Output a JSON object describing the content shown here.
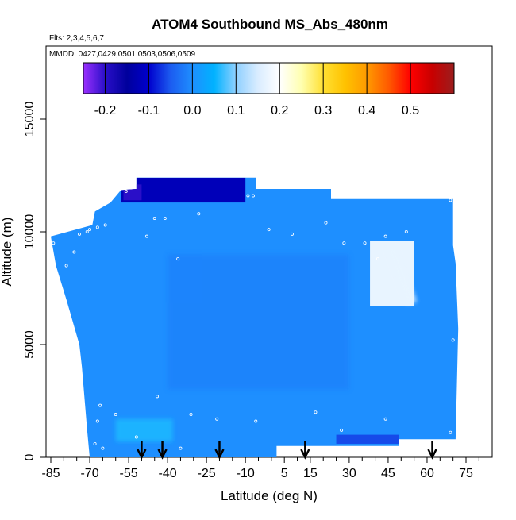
{
  "chart_data": {
    "type": "heatmap",
    "title": "ATOM4 Southbound MS_Abs_480nm",
    "subtitle_flights": "Flts: 2,3,4,5,6,7",
    "subtitle_dates": "MMDD: 0427,0429,0501,0503,0506,0509",
    "xlabel": "Latitude (deg N)",
    "ylabel": "Altitude (m)",
    "xlim": [
      -88,
      84
    ],
    "ylim": [
      0,
      17500
    ],
    "x_ticks": [
      -85,
      -70,
      -55,
      -40,
      -25,
      -10,
      5,
      15,
      30,
      45,
      60,
      75
    ],
    "x_tick_labels": [
      "-85",
      "-70",
      "-55",
      "-40",
      "-25",
      "-10",
      "5",
      "15",
      "30",
      "45",
      "60",
      "75"
    ],
    "x_minor_ticks": [
      -80,
      -75,
      -65,
      -60,
      -50,
      -45,
      -35,
      -30,
      -20,
      -15,
      -5,
      0,
      10,
      20,
      25,
      35,
      40,
      50,
      55,
      65,
      70,
      80
    ],
    "y_ticks": [
      0,
      5000,
      10000,
      15000
    ],
    "y_tick_labels": [
      "0",
      "5000",
      "10000",
      "15000"
    ],
    "colorbar": {
      "range": [
        -0.25,
        0.6
      ],
      "tick_values": [
        -0.2,
        -0.1,
        0.0,
        0.1,
        0.2,
        0.3,
        0.4,
        0.5
      ],
      "tick_labels": [
        "-0.2",
        "-0.1",
        "0.0",
        "0.1",
        "0.2",
        "0.3",
        "0.4",
        "0.5"
      ],
      "stops": [
        {
          "v": -0.25,
          "c": "#9b30ff"
        },
        {
          "v": -0.2,
          "c": "#2a0fc8"
        },
        {
          "v": -0.15,
          "c": "#00009c"
        },
        {
          "v": -0.1,
          "c": "#0000cd"
        },
        {
          "v": -0.05,
          "c": "#1c5cf0"
        },
        {
          "v": 0.0,
          "c": "#1e8fff"
        },
        {
          "v": 0.05,
          "c": "#00b2ff"
        },
        {
          "v": 0.1,
          "c": "#8fd0ff"
        },
        {
          "v": 0.15,
          "c": "#d9ecff"
        },
        {
          "v": 0.2,
          "c": "#ffffff"
        },
        {
          "v": 0.25,
          "c": "#ffffb0"
        },
        {
          "v": 0.3,
          "c": "#ffe033"
        },
        {
          "v": 0.35,
          "c": "#ffc200"
        },
        {
          "v": 0.4,
          "c": "#ff9a00"
        },
        {
          "v": 0.45,
          "c": "#ff5a00"
        },
        {
          "v": 0.5,
          "c": "#ff0000"
        },
        {
          "v": 0.55,
          "c": "#c80000"
        },
        {
          "v": 0.6,
          "c": "#9b1e1e"
        }
      ]
    },
    "curtain_outline": [
      [
        -85,
        9800
      ],
      [
        -69,
        10300
      ],
      [
        -68,
        10900
      ],
      [
        -62,
        11300
      ],
      [
        -58,
        11850
      ],
      [
        -52,
        11900
      ],
      [
        -52,
        12400
      ],
      [
        -6,
        12400
      ],
      [
        -6,
        11900
      ],
      [
        23,
        11900
      ],
      [
        23,
        11450
      ],
      [
        70,
        11450
      ],
      [
        70,
        9400
      ],
      [
        71,
        8600
      ],
      [
        72,
        5700
      ],
      [
        71,
        800
      ],
      [
        49,
        800
      ],
      [
        49,
        500
      ],
      [
        2,
        500
      ],
      [
        2,
        0
      ],
      [
        -70,
        0
      ],
      [
        -71,
        1200
      ],
      [
        -73,
        4000
      ],
      [
        -74,
        5000
      ],
      [
        -79,
        7000
      ],
      [
        -83,
        8500
      ]
    ],
    "background_value": 0.0,
    "features": [
      {
        "name": "high-altitude-low-values",
        "lat": [
          -58,
          -10
        ],
        "alt": [
          11300,
          12400
        ],
        "value": -0.12
      },
      {
        "name": "upper-minimum-core",
        "lat": [
          -57,
          -50
        ],
        "alt": [
          11400,
          12100
        ],
        "value": -0.2
      },
      {
        "name": "northern-upper-plume",
        "lat": [
          38,
          55
        ],
        "alt": [
          6700,
          9600
        ],
        "value": 0.17
      },
      {
        "name": "southern-boundary-layer-plume",
        "lat": [
          -60,
          -38
        ],
        "alt": [
          700,
          1700
        ],
        "value": 0.06
      },
      {
        "name": "low-level-negative-strip",
        "lat": [
          25,
          49
        ],
        "alt": [
          600,
          1000
        ],
        "value": -0.06
      },
      {
        "name": "mid-troposphere-slight-low",
        "lat": [
          -40,
          30
        ],
        "alt": [
          3000,
          9000
        ],
        "value": -0.02
      }
    ],
    "sample_points": [
      [
        -84,
        9500
      ],
      [
        -79,
        8500
      ],
      [
        -76,
        9100
      ],
      [
        -74,
        9900
      ],
      [
        -71,
        10000
      ],
      [
        -70,
        10100
      ],
      [
        -69,
        10800
      ],
      [
        -67,
        10200
      ],
      [
        -64,
        10300
      ],
      [
        -57,
        12000
      ],
      [
        -56,
        11800
      ],
      [
        -48,
        9800
      ],
      [
        -45,
        10600
      ],
      [
        -41,
        10600
      ],
      [
        -36,
        8800
      ],
      [
        -28,
        10800
      ],
      [
        -9,
        11600
      ],
      [
        -7,
        11600
      ],
      [
        -2,
        12200
      ],
      [
        -1,
        10100
      ],
      [
        8,
        9900
      ],
      [
        21,
        10400
      ],
      [
        28,
        9500
      ],
      [
        36,
        9500
      ],
      [
        41,
        8800
      ],
      [
        44,
        9800
      ],
      [
        52,
        10000
      ],
      [
        69,
        11400
      ],
      [
        70,
        5200
      ],
      [
        69,
        1100
      ],
      [
        -72,
        1200
      ],
      [
        -67,
        1600
      ],
      [
        -66,
        2300
      ],
      [
        -60,
        1900
      ],
      [
        -44,
        2700
      ],
      [
        -31,
        1900
      ],
      [
        -21,
        1700
      ],
      [
        -6,
        1600
      ],
      [
        17,
        2000
      ],
      [
        27,
        1200
      ],
      [
        44,
        1700
      ],
      [
        -68,
        600
      ],
      [
        -65,
        400
      ],
      [
        -35,
        400
      ],
      [
        8,
        200
      ],
      [
        11,
        400
      ],
      [
        -52,
        900
      ]
    ],
    "arrows_lat": [
      -50,
      -42,
      -20,
      13,
      62
    ]
  }
}
